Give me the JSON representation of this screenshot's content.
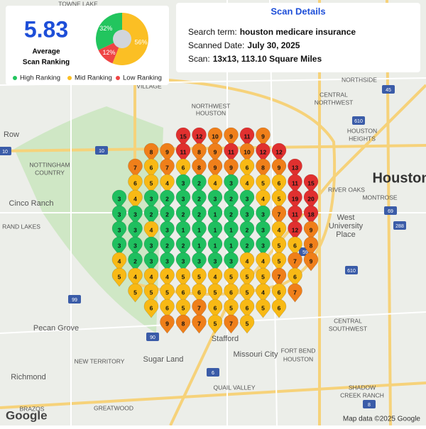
{
  "score_card": {
    "score": 5.83,
    "score_caption": [
      "Average",
      "Scan Ranking"
    ]
  },
  "chart_data": {
    "type": "pie",
    "categories": [
      "High Ranking",
      "Mid Ranking",
      "Low Ranking"
    ],
    "values": [
      32,
      56,
      12
    ],
    "value_labels": [
      "32%",
      "56%",
      "12%"
    ],
    "colors": [
      "#22c55e",
      "#fbbf24",
      "#ef4444"
    ]
  },
  "scan_details": {
    "title": "Scan Details",
    "rows": [
      [
        "Search term:",
        "houston medicare insurance"
      ],
      [
        "Scanned Date:",
        "July 30, 2025"
      ],
      [
        "Scan:",
        "13x13, 113.10 Square Miles"
      ]
    ]
  },
  "grid": [
    [
      null,
      null,
      null,
      null,
      15,
      12,
      10,
      9,
      11,
      9,
      null,
      null,
      null
    ],
    [
      null,
      null,
      8,
      9,
      11,
      8,
      9,
      11,
      10,
      12,
      12,
      null,
      null
    ],
    [
      null,
      7,
      6,
      7,
      6,
      8,
      9,
      9,
      6,
      8,
      9,
      13,
      null
    ],
    [
      null,
      6,
      5,
      4,
      3,
      2,
      4,
      3,
      4,
      5,
      6,
      11,
      15
    ],
    [
      3,
      4,
      3,
      2,
      3,
      2,
      3,
      2,
      3,
      4,
      5,
      19,
      20
    ],
    [
      3,
      3,
      2,
      2,
      2,
      2,
      1,
      2,
      3,
      3,
      7,
      11,
      18
    ],
    [
      3,
      3,
      4,
      3,
      1,
      1,
      1,
      1,
      2,
      3,
      4,
      12,
      9
    ],
    [
      3,
      3,
      3,
      2,
      2,
      1,
      1,
      1,
      2,
      3,
      5,
      6,
      8
    ],
    [
      4,
      2,
      3,
      3,
      3,
      3,
      3,
      3,
      4,
      4,
      5,
      7,
      9
    ],
    [
      5,
      4,
      4,
      4,
      5,
      5,
      4,
      5,
      5,
      5,
      7,
      6,
      null
    ],
    [
      null,
      5,
      5,
      5,
      6,
      6,
      5,
      6,
      5,
      4,
      6,
      7,
      null
    ],
    [
      null,
      null,
      6,
      6,
      5,
      7,
      6,
      5,
      6,
      5,
      6,
      null,
      null
    ],
    [
      null,
      null,
      null,
      9,
      8,
      7,
      5,
      7,
      5,
      null,
      null,
      null,
      null
    ]
  ],
  "places": [
    "TOWNE LAKE",
    "Row",
    "NORTHWEST",
    "HOUSTON",
    "NOTTINGHAM",
    "COUNTRY",
    "Cinco Ranch",
    "RAND LAKES",
    "Pecan Grove",
    "NEW TERRITORY",
    "Sugar Land",
    "Stafford",
    "Missouri City",
    "FORT BEND",
    "HOUSTON",
    "Richmond",
    "QUAIL VALLEY",
    "BRAZOS",
    "GREATWOOD",
    "Houston",
    "RIVER OAKS",
    "MONTROSE",
    "West",
    "University",
    "Place",
    "NORTHSIDE",
    "CENTRAL",
    "NORTHWEST",
    "HOUSTON",
    "HEIGHTS",
    "CENTRAL",
    "SOUTHWEST",
    "SHADOW",
    "CREEK RANCH",
    "VILLAGE"
  ],
  "shields": [
    "10",
    "610",
    "45",
    "69",
    "288",
    "90",
    "99",
    "6",
    "8",
    "59",
    "610",
    "10"
  ],
  "footer": {
    "logo": "Google",
    "attribution": "Map data ©2025 Google"
  }
}
